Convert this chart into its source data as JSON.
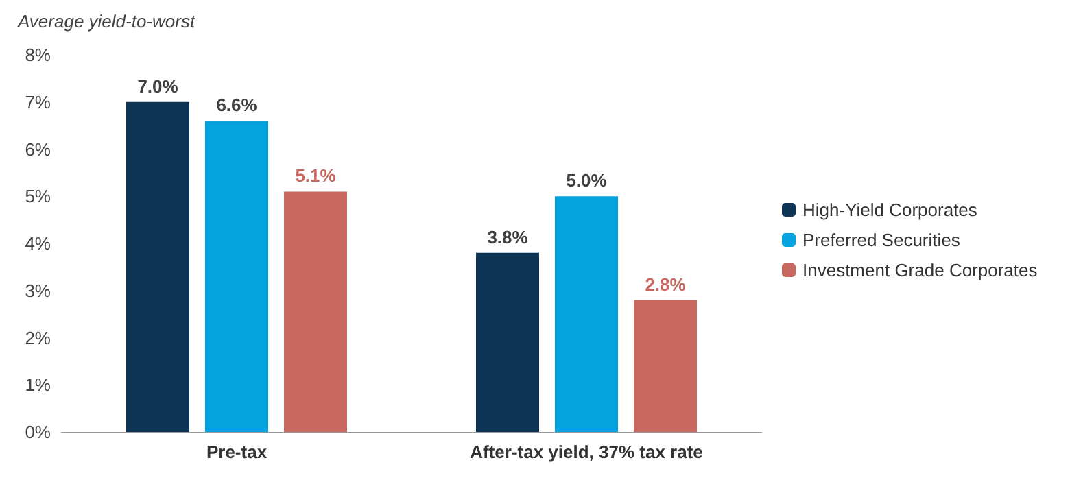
{
  "chart_data": {
    "type": "bar",
    "ylabel": "Average yield-to-worst",
    "categories": [
      "Pre-tax",
      "After-tax yield, 37% tax rate"
    ],
    "series": [
      {
        "name": "High-Yield Corporates",
        "color": "#0d3455",
        "values": [
          7.0,
          3.8
        ],
        "value_labels": [
          "7.0%",
          "3.8%"
        ]
      },
      {
        "name": "Preferred Securities",
        "color": "#04a2de",
        "values": [
          6.6,
          5.0
        ],
        "value_labels": [
          "6.6%",
          "5.0%"
        ]
      },
      {
        "name": "Investment Grade Corporates",
        "color": "#c6685f",
        "values": [
          5.1,
          2.8
        ],
        "value_labels": [
          "5.1%",
          "2.8%"
        ]
      }
    ],
    "ylim": [
      0,
      8
    ],
    "yticks": [
      {
        "value": 0,
        "label": "0%"
      },
      {
        "value": 1,
        "label": "1%"
      },
      {
        "value": 2,
        "label": "2%"
      },
      {
        "value": 3,
        "label": "3%"
      },
      {
        "value": 4,
        "label": "4%"
      },
      {
        "value": 5,
        "label": "5%"
      },
      {
        "value": 6,
        "label": "6%"
      },
      {
        "value": 7,
        "label": "7%"
      },
      {
        "value": 8,
        "label": "8%"
      }
    ],
    "grid": false,
    "legend": "right"
  }
}
